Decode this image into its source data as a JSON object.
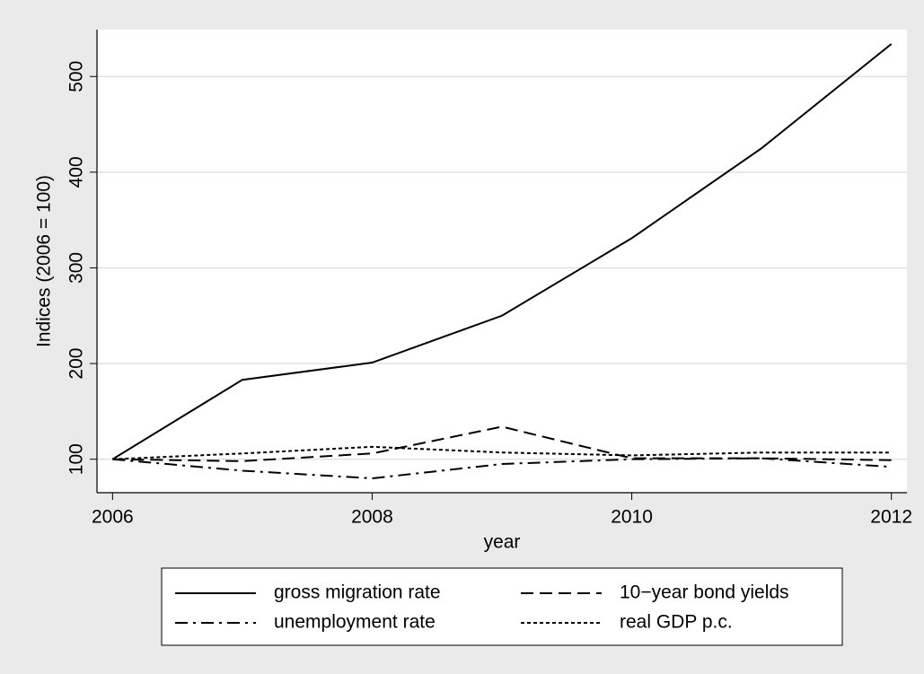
{
  "chart_data": {
    "type": "line",
    "x_label": "year",
    "y_label": "Indices (2006 = 100)",
    "x": [
      2006,
      2007,
      2008,
      2009,
      2010,
      2011,
      2012
    ],
    "series": [
      {
        "name": "gross migration rate",
        "color": "#000000",
        "dash": "solid",
        "values": [
          100,
          183,
          201,
          250,
          331,
          425,
          534
        ]
      },
      {
        "name": "10−year bond yields",
        "color": "#000000",
        "dash": "dashed",
        "values": [
          100,
          98,
          106,
          134,
          101,
          101,
          99
        ]
      },
      {
        "name": "unemployment rate",
        "color": "#000000",
        "dash": "dashdot",
        "values": [
          100,
          88,
          80,
          95,
          100,
          101,
          92
        ]
      },
      {
        "name": "real GDP p.c.",
        "color": "#000000",
        "dash": "dotted",
        "values": [
          100,
          106,
          113,
          107,
          104,
          107,
          107
        ]
      }
    ],
    "xlim": [
      2005.88,
      2012.12
    ],
    "xticks": [
      2006,
      2008,
      2010,
      2012
    ],
    "ylim": [
      65,
      549
    ],
    "yticks": [
      100,
      200,
      300,
      400,
      500
    ],
    "grid": true,
    "legend": "bottom"
  }
}
